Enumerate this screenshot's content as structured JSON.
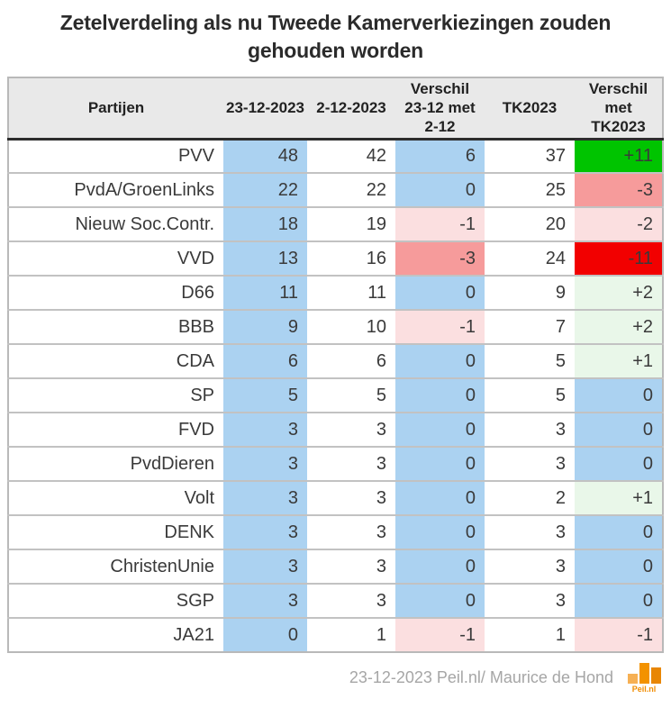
{
  "chart_data": {
    "type": "table",
    "title": "Zetelverdeling als nu Tweede Kamerverkiezingen zouden gehouden worden",
    "columns": [
      {
        "label": "Partijen"
      },
      {
        "label": "23-12-2023"
      },
      {
        "label": "2-12-2023"
      },
      {
        "label": "Verschil\n23-12 met\n2-12"
      },
      {
        "label": "TK2023"
      },
      {
        "label": "Verschil\nmet\nTK2023"
      }
    ],
    "rows": [
      {
        "party": "PVV",
        "cells": [
          {
            "v": "48",
            "bg": "blue"
          },
          {
            "v": "42",
            "bg": "white"
          },
          {
            "v": "6",
            "bg": "blue"
          },
          {
            "v": "37",
            "bg": "white"
          },
          {
            "v": "+11",
            "bg": "green_strong"
          }
        ]
      },
      {
        "party": "PvdA/GroenLinks",
        "cells": [
          {
            "v": "22",
            "bg": "blue"
          },
          {
            "v": "22",
            "bg": "white"
          },
          {
            "v": "0",
            "bg": "blue"
          },
          {
            "v": "25",
            "bg": "white"
          },
          {
            "v": "-3",
            "bg": "pink_medium"
          }
        ]
      },
      {
        "party": "Nieuw Soc.Contr.",
        "cells": [
          {
            "v": "18",
            "bg": "blue"
          },
          {
            "v": "19",
            "bg": "white"
          },
          {
            "v": "-1",
            "bg": "pink_light"
          },
          {
            "v": "20",
            "bg": "white"
          },
          {
            "v": "-2",
            "bg": "pink_light"
          }
        ]
      },
      {
        "party": "VVD",
        "cells": [
          {
            "v": "13",
            "bg": "blue"
          },
          {
            "v": "16",
            "bg": "white"
          },
          {
            "v": "-3",
            "bg": "pink_medium"
          },
          {
            "v": "24",
            "bg": "white"
          },
          {
            "v": "-11",
            "bg": "red_strong"
          }
        ]
      },
      {
        "party": "D66",
        "cells": [
          {
            "v": "11",
            "bg": "blue"
          },
          {
            "v": "11",
            "bg": "white"
          },
          {
            "v": "0",
            "bg": "blue"
          },
          {
            "v": "9",
            "bg": "white"
          },
          {
            "v": "+2",
            "bg": "green_light"
          }
        ]
      },
      {
        "party": "BBB",
        "cells": [
          {
            "v": "9",
            "bg": "blue"
          },
          {
            "v": "10",
            "bg": "white"
          },
          {
            "v": "-1",
            "bg": "pink_light"
          },
          {
            "v": "7",
            "bg": "white"
          },
          {
            "v": "+2",
            "bg": "green_light"
          }
        ]
      },
      {
        "party": "CDA",
        "cells": [
          {
            "v": "6",
            "bg": "blue"
          },
          {
            "v": "6",
            "bg": "white"
          },
          {
            "v": "0",
            "bg": "blue"
          },
          {
            "v": "5",
            "bg": "white"
          },
          {
            "v": "+1",
            "bg": "green_light"
          }
        ]
      },
      {
        "party": "SP",
        "cells": [
          {
            "v": "5",
            "bg": "blue"
          },
          {
            "v": "5",
            "bg": "white"
          },
          {
            "v": "0",
            "bg": "blue"
          },
          {
            "v": "5",
            "bg": "white"
          },
          {
            "v": "0",
            "bg": "blue"
          }
        ]
      },
      {
        "party": "FVD",
        "cells": [
          {
            "v": "3",
            "bg": "blue"
          },
          {
            "v": "3",
            "bg": "white"
          },
          {
            "v": "0",
            "bg": "blue"
          },
          {
            "v": "3",
            "bg": "white"
          },
          {
            "v": "0",
            "bg": "blue"
          }
        ]
      },
      {
        "party": "PvdDieren",
        "cells": [
          {
            "v": "3",
            "bg": "blue"
          },
          {
            "v": "3",
            "bg": "white"
          },
          {
            "v": "0",
            "bg": "blue"
          },
          {
            "v": "3",
            "bg": "white"
          },
          {
            "v": "0",
            "bg": "blue"
          }
        ]
      },
      {
        "party": "Volt",
        "cells": [
          {
            "v": "3",
            "bg": "blue"
          },
          {
            "v": "3",
            "bg": "white"
          },
          {
            "v": "0",
            "bg": "blue"
          },
          {
            "v": "2",
            "bg": "white"
          },
          {
            "v": "+1",
            "bg": "green_light"
          }
        ]
      },
      {
        "party": "DENK",
        "cells": [
          {
            "v": "3",
            "bg": "blue"
          },
          {
            "v": "3",
            "bg": "white"
          },
          {
            "v": "0",
            "bg": "blue"
          },
          {
            "v": "3",
            "bg": "white"
          },
          {
            "v": "0",
            "bg": "blue"
          }
        ]
      },
      {
        "party": "ChristenUnie",
        "cells": [
          {
            "v": "3",
            "bg": "blue"
          },
          {
            "v": "3",
            "bg": "white"
          },
          {
            "v": "0",
            "bg": "blue"
          },
          {
            "v": "3",
            "bg": "white"
          },
          {
            "v": "0",
            "bg": "blue"
          }
        ]
      },
      {
        "party": "SGP",
        "cells": [
          {
            "v": "3",
            "bg": "blue"
          },
          {
            "v": "3",
            "bg": "white"
          },
          {
            "v": "0",
            "bg": "blue"
          },
          {
            "v": "3",
            "bg": "white"
          },
          {
            "v": "0",
            "bg": "blue"
          }
        ]
      },
      {
        "party": "JA21",
        "cells": [
          {
            "v": "0",
            "bg": "blue"
          },
          {
            "v": "1",
            "bg": "white"
          },
          {
            "v": "-1",
            "bg": "pink_light"
          },
          {
            "v": "1",
            "bg": "white"
          },
          {
            "v": "-1",
            "bg": "pink_light"
          }
        ]
      }
    ]
  },
  "footer": {
    "credit": "23-12-2023 Peil.nl/ Maurice de Hond",
    "logo_text": "Peil.nl"
  },
  "colors": {
    "blue": "#abd2f1",
    "white": "#ffffff",
    "green_strong": "#00c400",
    "green_light": "#e9f7e9",
    "red_strong": "#f20000",
    "pink_medium": "#f69b9b",
    "pink_light": "#fbdfe0",
    "header_bg": "#e9e9e9",
    "logo_bar_colors": [
      "#f6b054",
      "#f39200",
      "#e88604"
    ],
    "logo_text_color": "#f08c00"
  }
}
